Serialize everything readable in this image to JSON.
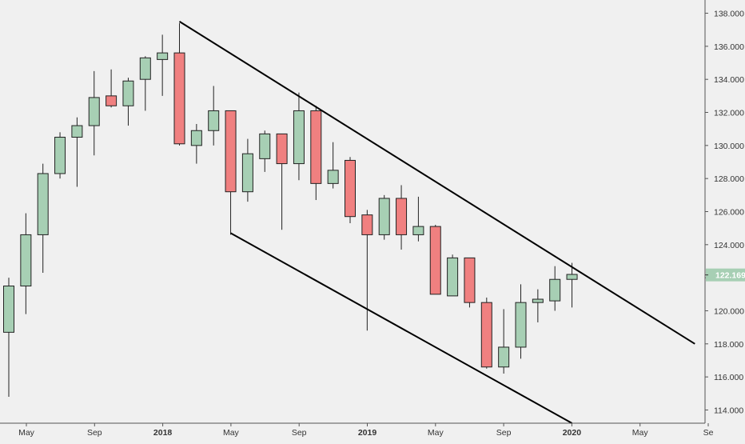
{
  "chart_data": {
    "type": "candlestick",
    "ylim": [
      113.2,
      138.8
    ],
    "y_ticks": [
      "114.000",
      "116.000",
      "118.000",
      "120.000",
      "122.000",
      "124.000",
      "126.000",
      "128.000",
      "130.000",
      "132.000",
      "134.000",
      "136.000",
      "138.000"
    ],
    "x_tick_labels": [
      "May",
      "Sep",
      "2018",
      "May",
      "Sep",
      "2019",
      "May",
      "Sep",
      "2020",
      "May",
      "Se"
    ],
    "x_tick_bold": [
      false,
      false,
      true,
      false,
      false,
      true,
      false,
      false,
      true,
      false,
      false
    ],
    "price_label": "122.169",
    "colors": {
      "up": "#a7cfb4",
      "down": "#f08080",
      "outline": "#222222",
      "price_tag": "#a7cfb4",
      "trend_line": "#000000",
      "background": "#f0f0f0"
    },
    "grid": false,
    "candles": [
      {
        "o": 118.7,
        "h": 122.0,
        "l": 114.8,
        "c": 121.5
      },
      {
        "o": 121.5,
        "h": 125.9,
        "l": 119.8,
        "c": 124.6
      },
      {
        "o": 124.6,
        "h": 128.9,
        "l": 122.3,
        "c": 128.3
      },
      {
        "o": 128.3,
        "h": 130.8,
        "l": 128.0,
        "c": 130.5
      },
      {
        "o": 130.5,
        "h": 131.7,
        "l": 127.5,
        "c": 131.2
      },
      {
        "o": 131.2,
        "h": 134.5,
        "l": 129.4,
        "c": 132.9
      },
      {
        "o": 133.0,
        "h": 134.6,
        "l": 132.3,
        "c": 132.4
      },
      {
        "o": 132.4,
        "h": 134.1,
        "l": 131.2,
        "c": 133.9
      },
      {
        "o": 134.0,
        "h": 135.4,
        "l": 132.1,
        "c": 135.3
      },
      {
        "o": 135.2,
        "h": 136.7,
        "l": 133.0,
        "c": 135.6
      },
      {
        "o": 135.6,
        "h": 137.4,
        "l": 130.0,
        "c": 130.1
      },
      {
        "o": 130.0,
        "h": 131.3,
        "l": 128.9,
        "c": 130.9
      },
      {
        "o": 130.9,
        "h": 133.6,
        "l": 130.0,
        "c": 132.1
      },
      {
        "o": 132.1,
        "h": 132.1,
        "l": 124.6,
        "c": 127.2
      },
      {
        "o": 127.2,
        "h": 130.4,
        "l": 126.6,
        "c": 129.5
      },
      {
        "o": 129.2,
        "h": 130.9,
        "l": 128.4,
        "c": 130.7
      },
      {
        "o": 130.7,
        "h": 130.7,
        "l": 124.9,
        "c": 128.9
      },
      {
        "o": 128.9,
        "h": 133.2,
        "l": 127.9,
        "c": 132.1
      },
      {
        "o": 132.1,
        "h": 132.4,
        "l": 126.7,
        "c": 127.7
      },
      {
        "o": 127.7,
        "h": 130.2,
        "l": 127.4,
        "c": 128.5
      },
      {
        "o": 129.1,
        "h": 129.3,
        "l": 125.3,
        "c": 125.7
      },
      {
        "o": 125.8,
        "h": 126.1,
        "l": 118.8,
        "c": 124.6
      },
      {
        "o": 124.6,
        "h": 127.0,
        "l": 124.3,
        "c": 126.8
      },
      {
        "o": 126.8,
        "h": 127.6,
        "l": 123.7,
        "c": 124.6
      },
      {
        "o": 124.6,
        "h": 126.9,
        "l": 124.2,
        "c": 125.1
      },
      {
        "o": 125.1,
        "h": 125.2,
        "l": 121.0,
        "c": 121.0
      },
      {
        "o": 120.9,
        "h": 123.4,
        "l": 120.9,
        "c": 123.2
      },
      {
        "o": 123.2,
        "h": 123.2,
        "l": 120.2,
        "c": 120.5
      },
      {
        "o": 120.5,
        "h": 120.8,
        "l": 116.5,
        "c": 116.6
      },
      {
        "o": 116.6,
        "h": 120.1,
        "l": 116.2,
        "c": 117.8
      },
      {
        "o": 117.8,
        "h": 121.6,
        "l": 117.1,
        "c": 120.5
      },
      {
        "o": 120.5,
        "h": 121.3,
        "l": 119.3,
        "c": 120.7
      },
      {
        "o": 120.6,
        "h": 122.7,
        "l": 120.0,
        "c": 121.9
      },
      {
        "o": 121.9,
        "h": 122.9,
        "l": 120.2,
        "c": 122.2
      }
    ],
    "trend_lines": [
      {
        "x1": 10.0,
        "y1": 137.5,
        "x2": 40.2,
        "y2": 118.0
      },
      {
        "x1": 13.0,
        "y1": 124.7,
        "x2": 33.0,
        "y2": 113.2
      }
    ]
  }
}
